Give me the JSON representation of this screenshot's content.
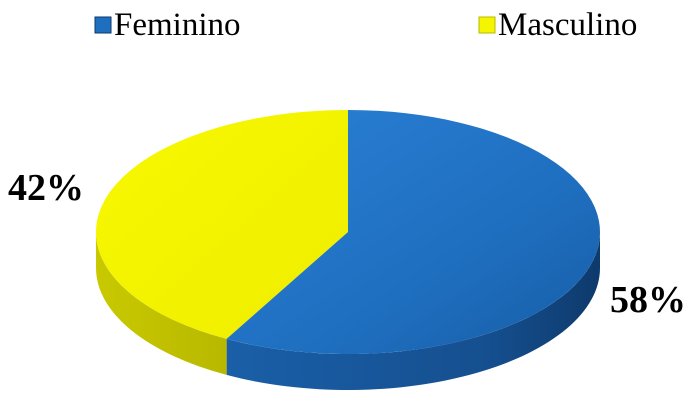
{
  "chart_data": {
    "type": "pie",
    "style": "3d",
    "title": "",
    "legend_position": "top",
    "categories": [
      "Feminino",
      "Masculino"
    ],
    "values": [
      58,
      42
    ],
    "data_labels": [
      "58%",
      "42%"
    ],
    "colors": [
      "#1f6fc0",
      "#f5f500"
    ]
  }
}
